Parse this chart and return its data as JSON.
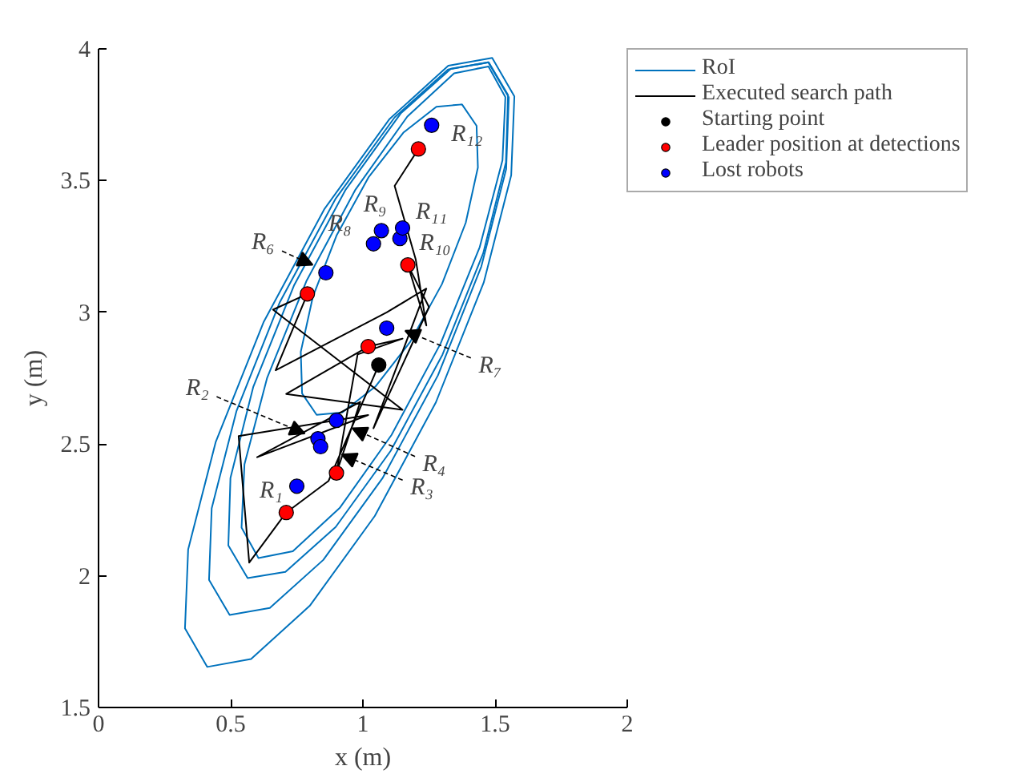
{
  "chart_data": {
    "type": "line",
    "xlabel": "x (m)",
    "ylabel": "y (m)",
    "xlim": [
      0,
      2
    ],
    "ylim": [
      1.5,
      4
    ],
    "xticks": [
      0,
      0.5,
      1,
      1.5,
      2
    ],
    "yticks": [
      1.5,
      2,
      2.5,
      3,
      3.5,
      4
    ],
    "grid": false,
    "legend": "top right",
    "series": [
      {
        "name": "RoI",
        "color": "#0072bd",
        "x": [
          1.475,
          1.345,
          1.168,
          0.972,
          0.786,
          0.638,
          0.552,
          0.541,
          0.605,
          0.735,
          0.912,
          1.108,
          1.294,
          1.442,
          1.528,
          1.539,
          1.475,
          1.43
        ],
        "values": [
          3.933,
          3.907,
          3.743,
          3.466,
          3.118,
          2.752,
          2.423,
          2.183,
          2.067,
          2.093,
          2.257,
          2.534,
          2.882,
          3.248,
          3.577,
          3.817,
          3.933,
          3.925
        ]
      },
      {
        "type": "line",
        "color": "#0072bd",
        "x": [
          1.476,
          1.333,
          1.143,
          0.935,
          0.739,
          0.585,
          0.499,
          0.491,
          0.564,
          0.707,
          0.897,
          1.105,
          1.301,
          1.455,
          1.541,
          1.549,
          1.476,
          1.43
        ],
        "values": [
          3.949,
          3.925,
          3.755,
          3.466,
          3.101,
          2.716,
          2.371,
          2.115,
          1.991,
          2.015,
          2.185,
          2.474,
          2.839,
          3.224,
          3.569,
          3.825,
          3.949,
          3.94
        ]
      },
      {
        "type": "line",
        "color": "#0072bd",
        "x": [
          1.474,
          1.322,
          1.12,
          0.896,
          0.686,
          0.522,
          0.428,
          0.418,
          0.496,
          0.648,
          0.85,
          1.074,
          1.284,
          1.448,
          1.542,
          1.552,
          1.474,
          1.42
        ],
        "values": [
          3.949,
          3.922,
          3.74,
          3.43,
          3.039,
          2.626,
          2.256,
          1.984,
          1.851,
          1.878,
          2.06,
          2.37,
          2.761,
          3.174,
          3.544,
          3.816,
          3.949,
          3.94
        ]
      },
      {
        "type": "line",
        "color": "#0072bd",
        "x": [
          1.489,
          1.323,
          1.101,
          0.855,
          0.624,
          0.443,
          0.339,
          0.327,
          0.411,
          0.577,
          0.799,
          1.045,
          1.276,
          1.457,
          1.561,
          1.573,
          1.489,
          1.43
        ],
        "values": [
          3.966,
          3.936,
          3.734,
          3.393,
          2.962,
          2.507,
          2.1,
          1.8,
          1.654,
          1.684,
          1.886,
          2.227,
          2.658,
          3.113,
          3.52,
          3.82,
          3.966,
          3.955
        ]
      },
      {
        "type": "line",
        "color": "#0072bd",
        "x": [
          1.375,
          1.278,
          1.153,
          1.021,
          0.901,
          0.811,
          0.765,
          0.77,
          0.825,
          0.922,
          1.047,
          1.179,
          1.299,
          1.389,
          1.435,
          1.43,
          1.375,
          1.34
        ],
        "values": [
          3.789,
          3.78,
          3.682,
          3.512,
          3.293,
          3.06,
          2.85,
          2.692,
          2.611,
          2.62,
          2.718,
          2.888,
          3.107,
          3.34,
          3.55,
          3.708,
          3.789,
          3.786
        ]
      },
      {
        "name": "Executed search path",
        "color": "#000000",
        "x": [
          1.06,
          0.87,
          0.71,
          0.57,
          0.53,
          1.02,
          0.6,
          0.99,
          0.9,
          0.98,
          1.15,
          1.02,
          0.71,
          1.15,
          0.66,
          0.79,
          0.67,
          1.09,
          1.24,
          1.04,
          1.25,
          1.17,
          1.24,
          1.2,
          1.12,
          1.21
        ],
        "values": [
          2.8,
          2.36,
          2.24,
          2.05,
          2.53,
          2.61,
          2.45,
          2.66,
          2.39,
          2.84,
          2.9,
          2.87,
          2.69,
          2.63,
          3.01,
          3.07,
          2.78,
          3.0,
          3.09,
          2.56,
          3.02,
          3.18,
          2.95,
          3.2,
          3.48,
          3.62
        ]
      },
      {
        "name": "Starting point",
        "type": "scatter",
        "marker": "circle",
        "color": "#000000",
        "x": [
          1.06
        ],
        "values": [
          2.8
        ]
      },
      {
        "name": "Leader position at detections",
        "type": "scatter",
        "marker": "circle",
        "color": "#ff0000",
        "x": [
          0.71,
          0.9,
          1.02,
          0.79,
          1.17,
          1.21
        ],
        "values": [
          2.24,
          2.39,
          2.87,
          3.07,
          3.18,
          3.62
        ]
      },
      {
        "name": "Lost robots",
        "type": "scatter",
        "marker": "circle",
        "color": "#0000ff",
        "x": [
          0.75,
          0.83,
          0.84,
          0.9,
          0.86,
          1.09,
          1.04,
          1.07,
          1.14,
          1.15,
          1.26
        ],
        "values": [
          2.34,
          2.52,
          2.49,
          2.59,
          3.15,
          2.94,
          3.26,
          3.31,
          3.28,
          3.32,
          3.71
        ]
      }
    ],
    "annotations": [
      {
        "text": "R₁",
        "x": 0.75,
        "y": 2.34
      },
      {
        "text": "R₂",
        "x": 0.78,
        "y": 2.54
      },
      {
        "text": "R₃",
        "x": 0.92,
        "y": 2.46
      },
      {
        "text": "R₄",
        "x": 0.96,
        "y": 2.56
      },
      {
        "text": "R₆",
        "x": 0.81,
        "y": 3.18
      },
      {
        "text": "R₇",
        "x": 1.16,
        "y": 2.93
      },
      {
        "text": "R₈",
        "x": 1.04,
        "y": 3.26
      },
      {
        "text": "R₉",
        "x": 1.07,
        "y": 3.31
      },
      {
        "text": "R₁₀",
        "x": 1.14,
        "y": 3.28
      },
      {
        "text": "R₁₁",
        "x": 1.15,
        "y": 3.32
      },
      {
        "text": "R₁₂",
        "x": 1.26,
        "y": 3.71
      }
    ]
  }
}
